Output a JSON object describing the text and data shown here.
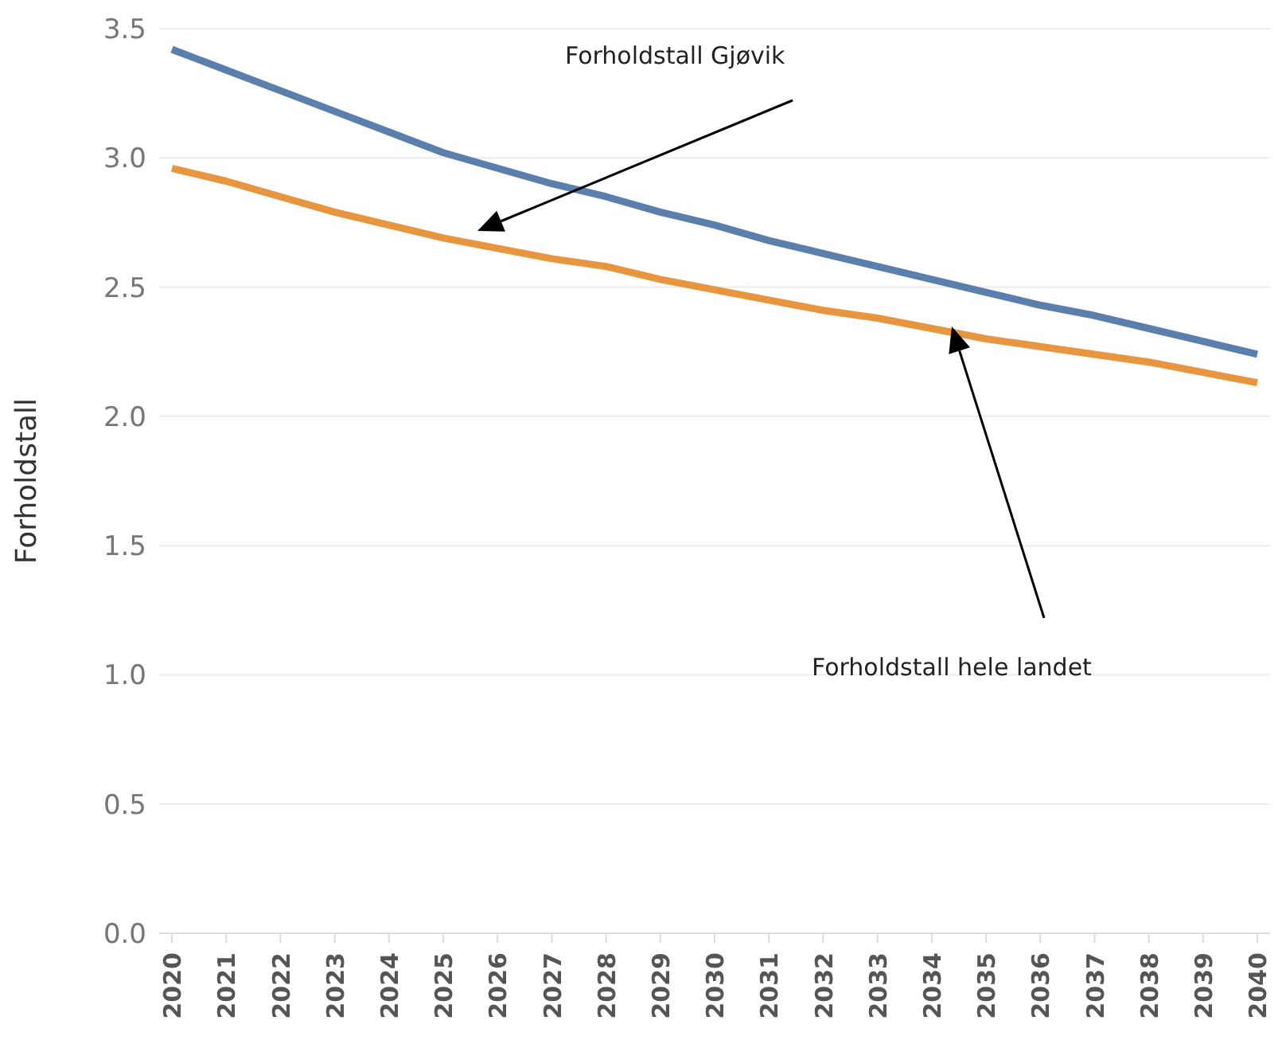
{
  "chart_data": {
    "type": "line",
    "ylabel": "Forholdstall",
    "categories": [
      "2020",
      "2021",
      "2022",
      "2023",
      "2024",
      "2025",
      "2026",
      "2027",
      "2028",
      "2029",
      "2030",
      "2031",
      "2032",
      "2033",
      "2034",
      "2035",
      "2036",
      "2037",
      "2038",
      "2039",
      "2040"
    ],
    "series": [
      {
        "color": "#5b7fad",
        "values": [
          3.42,
          3.34,
          3.26,
          3.18,
          3.1,
          3.02,
          2.96,
          2.9,
          2.85,
          2.79,
          2.74,
          2.68,
          2.63,
          2.58,
          2.53,
          2.48,
          2.43,
          2.39,
          2.34,
          2.29,
          2.24
        ]
      },
      {
        "color": "#e8953f",
        "values": [
          2.96,
          2.91,
          2.85,
          2.79,
          2.74,
          2.69,
          2.65,
          2.61,
          2.58,
          2.53,
          2.49,
          2.45,
          2.41,
          2.38,
          2.34,
          2.3,
          2.27,
          2.24,
          2.21,
          2.17,
          2.13
        ]
      }
    ],
    "ylim": [
      0,
      3.5
    ],
    "yticks": [
      {
        "value": 0,
        "label": "0.0"
      },
      {
        "value": 0.5,
        "label": "0.5"
      },
      {
        "value": 1,
        "label": "1.0"
      },
      {
        "value": 1.5,
        "label": "1.5"
      },
      {
        "value": 2,
        "label": "2.0"
      },
      {
        "value": 2.5,
        "label": "2.5"
      },
      {
        "value": 3,
        "label": "3.0"
      },
      {
        "value": 3.5,
        "label": "3.5"
      }
    ],
    "grid": "y",
    "legend": false,
    "marker": "none",
    "line_style": "solid",
    "annotations": [
      "Forholdstall Gjøvik",
      "Forholdstall hele landet"
    ]
  }
}
